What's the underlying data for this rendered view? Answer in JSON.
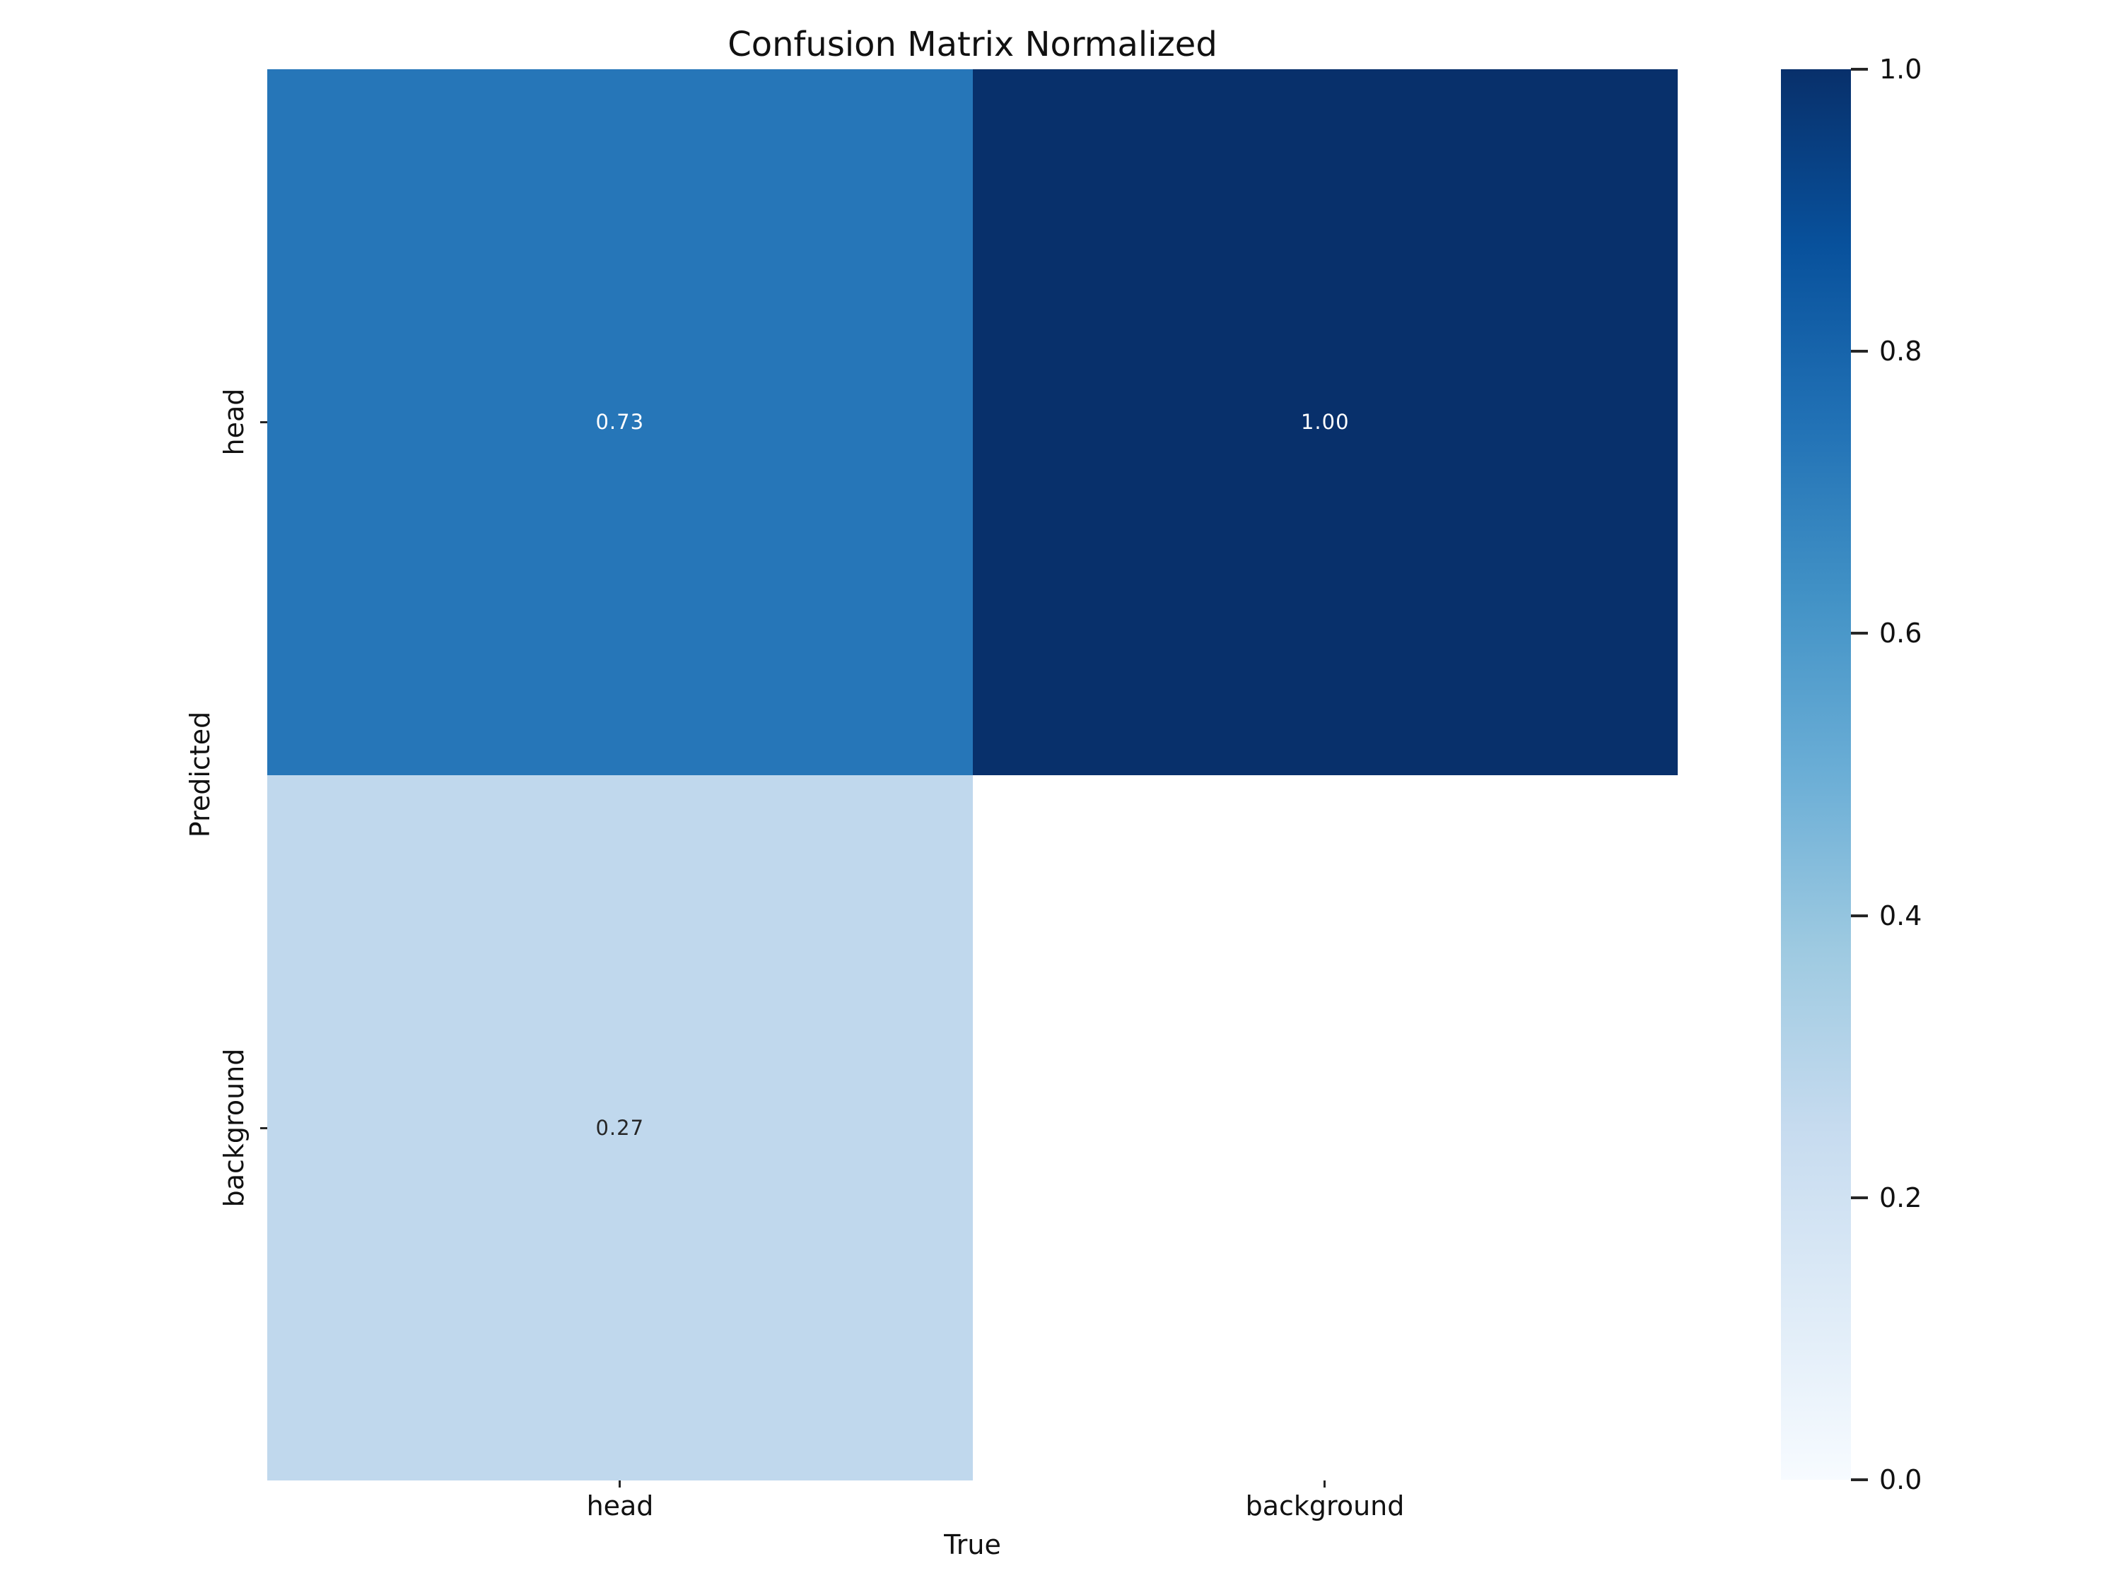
{
  "chart_data": {
    "type": "heatmap",
    "title": "Confusion Matrix Normalized",
    "xlabel": "True",
    "ylabel": "Predicted",
    "x_categories": [
      "head",
      "background"
    ],
    "y_categories": [
      "head",
      "background"
    ],
    "matrix_rows_predicted_cols_true": [
      [
        0.73,
        1.0
      ],
      [
        0.27,
        null
      ]
    ],
    "cells": [
      {
        "predicted": "head",
        "true": "head",
        "value": 0.73,
        "label": "0.73",
        "color": "#2676b8",
        "text_color": "#ffffff"
      },
      {
        "predicted": "head",
        "true": "background",
        "value": 1.0,
        "label": "1.00",
        "color": "#08306b",
        "text_color": "#ffffff"
      },
      {
        "predicted": "background",
        "true": "head",
        "value": 0.27,
        "label": "0.27",
        "color": "#c0d8ed",
        "text_color": "#262626"
      },
      {
        "predicted": "background",
        "true": "background",
        "value": null,
        "label": "",
        "color": "#ffffff",
        "text_color": "#262626"
      }
    ],
    "colormap": "Blues",
    "grid": false,
    "legend": false,
    "colorbar": {
      "min": 0.0,
      "max": 1.0,
      "tick_labels": [
        "1.0",
        "0.8",
        "0.6",
        "0.4",
        "0.2",
        "0.0"
      ],
      "gradient_bottom_to_top": [
        "#f7fbff",
        "#deebf7",
        "#c6dbef",
        "#9ecae1",
        "#6baed6",
        "#4292c6",
        "#2171b5",
        "#08519c",
        "#08306b"
      ]
    }
  }
}
